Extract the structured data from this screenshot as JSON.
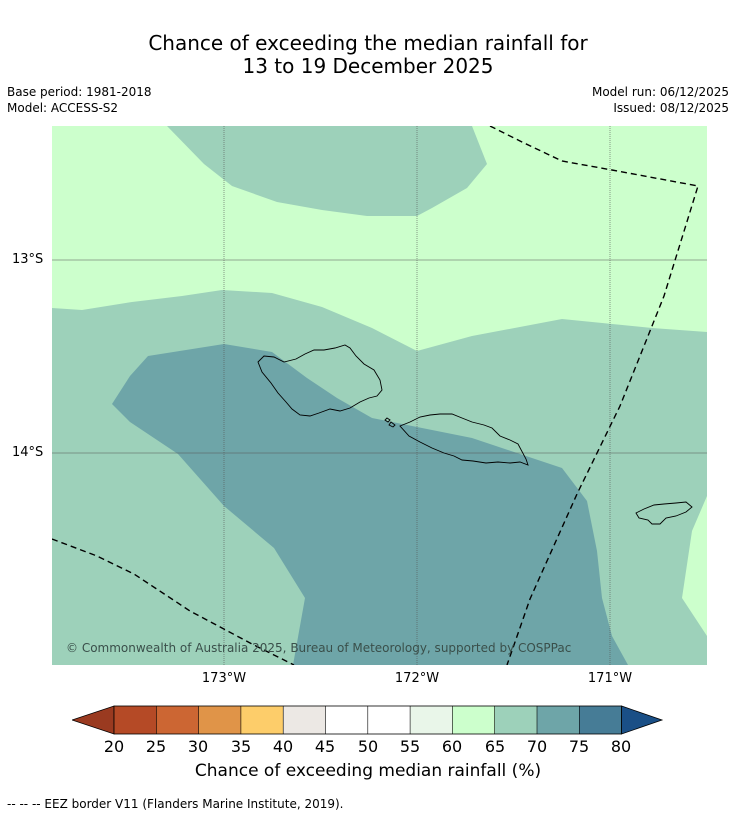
{
  "title": {
    "line1": "Chance of exceeding the median rainfall for",
    "line2": "13 to 19 December 2025"
  },
  "meta": {
    "base_period": "Base period: 1981-2018",
    "model": "Model: ACCESS-S2",
    "model_run": "Model run: 06/12/2025",
    "issued": "Issued: 08/12/2025"
  },
  "axes": {
    "lat_labels": [
      "13°S",
      "14°S"
    ],
    "lon_labels": [
      "173°W",
      "172°W",
      "171°W"
    ]
  },
  "copyright": "© Commonwealth of Australia 2025, Bureau of Meteorology, supported by COSPPac",
  "colorbar": {
    "ticks": [
      "20",
      "25",
      "30",
      "35",
      "40",
      "45",
      "50",
      "55",
      "60",
      "65",
      "70",
      "75",
      "80"
    ],
    "title": "Chance of exceeding median rainfall (%)",
    "colors": {
      "under": "#9a3a20",
      "20-25": "#b54a26",
      "25-30": "#cc6633",
      "30-35": "#e09448",
      "35-40": "#fdcd6a",
      "40-45": "#ece8e4",
      "45-50": "#ffffff",
      "50-55": "#ffffff",
      "55-60": "#e9f6e9",
      "60-65": "#ccffcc",
      "65-70": "#9dd1ba",
      "70-75": "#6ea5a8",
      "75-80": "#467c96",
      "over": "#1a4f86"
    }
  },
  "footnote": "--  --  -- EEZ border V11 (Flanders Marine Institute, 2019)."
}
